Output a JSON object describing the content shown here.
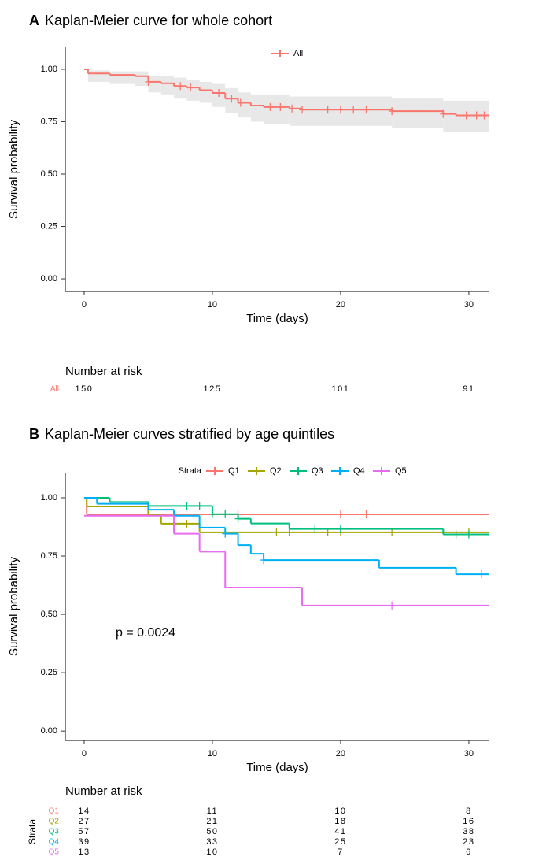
{
  "chart_data": [
    {
      "type": "step",
      "panel_label": "A",
      "title": "Kaplan-Meier curve for whole cohort",
      "xlabel": "Time (days)",
      "ylabel": "Survival probability",
      "xlim": [
        -1.47,
        31.6
      ],
      "ylim": [
        -0.06,
        1.105
      ],
      "xticks": [
        0,
        10,
        20,
        30
      ],
      "yticks": [
        {
          "value": 0,
          "label": "0.00"
        },
        {
          "value": 0.25,
          "label": "0.25"
        },
        {
          "value": 0.5,
          "label": "0.50"
        },
        {
          "value": 0.75,
          "label": "0.75"
        },
        {
          "value": 1,
          "label": "1.00"
        }
      ],
      "legend_position": "top",
      "confidence_band": true,
      "series": [
        {
          "name": "All",
          "color": "#F8766D",
          "x": [
            0,
            0.3,
            2,
            4,
            5,
            6,
            7,
            8,
            9,
            10,
            11,
            12,
            13,
            14,
            16,
            17,
            24,
            28,
            29
          ],
          "values": [
            1,
            0.98,
            0.973,
            0.967,
            0.94,
            0.933,
            0.92,
            0.913,
            0.9,
            0.887,
            0.86,
            0.84,
            0.827,
            0.82,
            0.813,
            0.807,
            0.8,
            0.787,
            0.78
          ],
          "lower": [
            1,
            0.94,
            0.93,
            0.92,
            0.89,
            0.88,
            0.86,
            0.85,
            0.84,
            0.82,
            0.79,
            0.77,
            0.75,
            0.74,
            0.73,
            0.73,
            0.72,
            0.7,
            0.7
          ],
          "upper": [
            1,
            0.995,
            0.99,
            0.99,
            0.97,
            0.97,
            0.96,
            0.95,
            0.94,
            0.93,
            0.91,
            0.89,
            0.88,
            0.88,
            0.87,
            0.87,
            0.86,
            0.85,
            0.85
          ],
          "censor_x": [
            5,
            7.5,
            8.3,
            10.5,
            11.5,
            12.2,
            14.5,
            15.3,
            16.2,
            17,
            19,
            20,
            21,
            22,
            24,
            28,
            29.8,
            30.6,
            31.2
          ]
        }
      ],
      "risk_table": {
        "title": "Number at risk",
        "rows": [
          {
            "name": "All",
            "values": [
              150,
              125,
              101,
              91
            ]
          }
        ]
      }
    },
    {
      "type": "step",
      "panel_label": "B",
      "title": "Kaplan-Meier curves stratified by age quintiles",
      "xlabel": "Time (days)",
      "ylabel": "Survival probability",
      "xlim": [
        -1.47,
        31.6
      ],
      "ylim": [
        -0.04,
        1.108
      ],
      "xticks": [
        0,
        10,
        20,
        30
      ],
      "yticks": [
        {
          "value": 0,
          "label": "0.00"
        },
        {
          "value": 0.25,
          "label": "0.25"
        },
        {
          "value": 0.5,
          "label": "0.50"
        },
        {
          "value": 0.75,
          "label": "0.75"
        },
        {
          "value": 1,
          "label": "1.00"
        }
      ],
      "legend_position": "top",
      "legend_title": "Strata",
      "confidence_band": false,
      "annotation": "p = 0.0024",
      "series": [
        {
          "name": "Q1",
          "color": "#F8766D",
          "x": [
            0,
            0.2
          ],
          "values": [
            1,
            0.929
          ],
          "censor_x": [
            12,
            20,
            22
          ]
        },
        {
          "name": "Q2",
          "color": "#A3A500",
          "x": [
            0,
            0.2,
            5,
            6,
            9
          ],
          "values": [
            1,
            0.963,
            0.926,
            0.889,
            0.852
          ],
          "censor_x": [
            8,
            15,
            16,
            19,
            20,
            24,
            30
          ]
        },
        {
          "name": "Q3",
          "color": "#00BF7D",
          "x": [
            0,
            2,
            5,
            10,
            12,
            13,
            16,
            28
          ],
          "values": [
            1,
            0.982,
            0.965,
            0.93,
            0.91,
            0.89,
            0.866,
            0.843
          ],
          "censor_x": [
            8,
            9,
            10,
            11,
            12,
            18,
            20,
            29,
            30
          ]
        },
        {
          "name": "Q4",
          "color": "#00B0F6",
          "x": [
            0,
            1,
            5,
            7,
            9,
            11,
            12,
            13,
            14,
            23,
            29
          ],
          "values": [
            1,
            0.974,
            0.949,
            0.923,
            0.872,
            0.846,
            0.797,
            0.76,
            0.733,
            0.7,
            0.672
          ],
          "censor_x": [
            11,
            14,
            31
          ]
        },
        {
          "name": "Q5",
          "color": "#E76BF3",
          "x": [
            0,
            7,
            9,
            11,
            17
          ],
          "values": [
            0.923,
            0.846,
            0.769,
            0.615,
            0.538
          ],
          "censor_x": [
            24
          ]
        }
      ],
      "risk_table": {
        "title": "Number at risk",
        "ylabel": "Strata",
        "rows": [
          {
            "name": "Q1",
            "values": [
              14,
              11,
              10,
              8
            ]
          },
          {
            "name": "Q2",
            "values": [
              27,
              21,
              18,
              16
            ]
          },
          {
            "name": "Q3",
            "values": [
              57,
              50,
              41,
              38
            ]
          },
          {
            "name": "Q4",
            "values": [
              39,
              33,
              25,
              23
            ]
          },
          {
            "name": "Q5",
            "values": [
              13,
              10,
              7,
              6
            ]
          }
        ]
      }
    }
  ]
}
